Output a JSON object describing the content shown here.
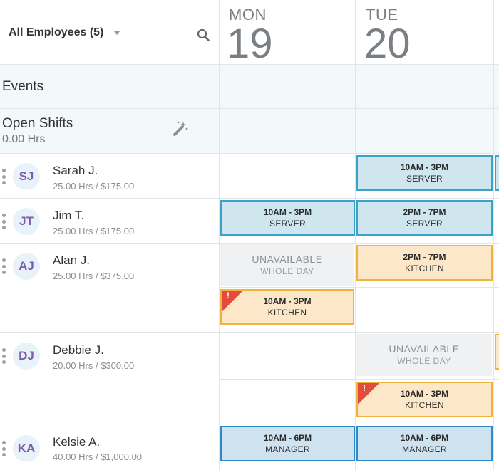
{
  "header": {
    "filter_label": "All Employees (5)",
    "days": [
      {
        "name": "MON",
        "num": "19"
      },
      {
        "name": "TUE",
        "num": "20"
      }
    ]
  },
  "rows": {
    "events": "Events",
    "open_shifts": {
      "title": "Open Shifts",
      "hours": "0.00 Hrs"
    }
  },
  "employees": [
    {
      "initials": "SJ",
      "name": "Sarah J.",
      "hours": "25.00 Hrs / $175.00"
    },
    {
      "initials": "JT",
      "name": "Jim T.",
      "hours": "25.00 Hrs / $175.00"
    },
    {
      "initials": "AJ",
      "name": "Alan J.",
      "hours": "25.00 Hrs / $375.00"
    },
    {
      "initials": "DJ",
      "name": "Debbie J.",
      "hours": "20.00 Hrs / $300.00"
    },
    {
      "initials": "KA",
      "name": "Kelsie A.",
      "hours": "40.00 Hrs / $1,000.00"
    }
  ],
  "shifts": {
    "sarah_tue": {
      "time": "10AM - 3PM",
      "role": "SERVER"
    },
    "jim_mon": {
      "time": "10AM - 3PM",
      "role": "SERVER"
    },
    "jim_tue": {
      "time": "2PM - 7PM",
      "role": "SERVER"
    },
    "alan_tue": {
      "time": "2PM - 7PM",
      "role": "KITCHEN"
    },
    "alan_mon": {
      "time": "10AM - 3PM",
      "role": "KITCHEN",
      "flag": "!"
    },
    "debbie_tue": {
      "time": "10AM - 3PM",
      "role": "KITCHEN",
      "flag": "!"
    },
    "kelsie_mon": {
      "time": "10AM - 6PM",
      "role": "MANAGER"
    },
    "kelsie_tue": {
      "time": "10AM - 6PM",
      "role": "MANAGER"
    }
  },
  "unavailable": {
    "label": "UNAVAILABLE",
    "sub": "WHOLE DAY"
  },
  "colors": {
    "server": "#cfe6ef",
    "kitchen": "#fce7c8",
    "manager": "#cfe2ef",
    "avatar_text": "#7d5bb0",
    "alert": "#e54b3c"
  }
}
